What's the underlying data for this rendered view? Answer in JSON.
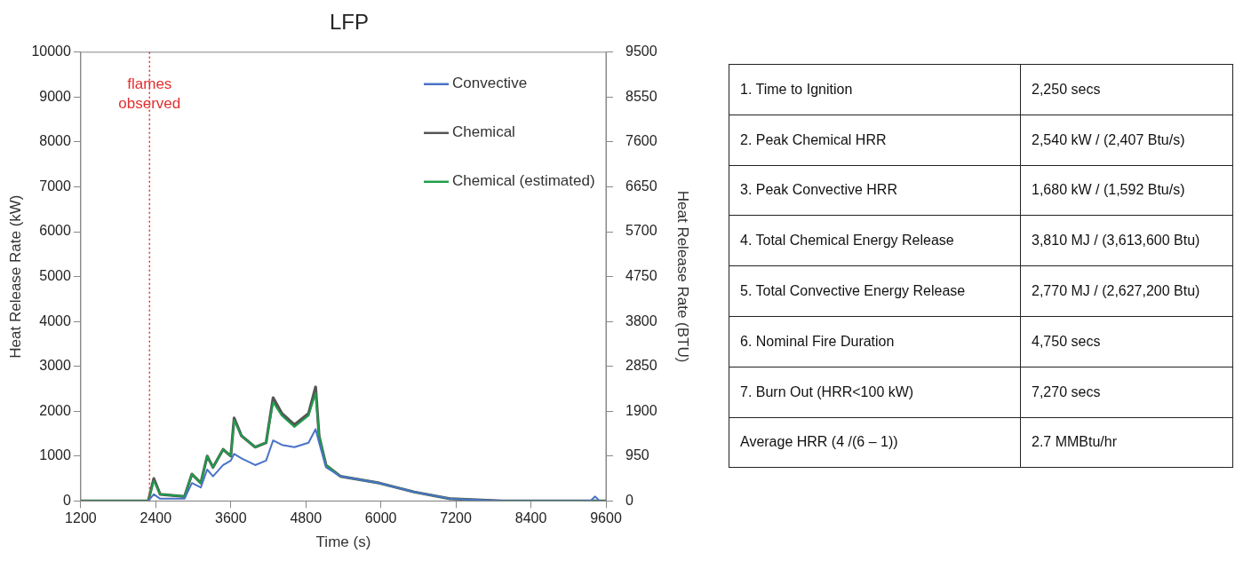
{
  "chart_data": [
    {
      "type": "line",
      "title": "LFP",
      "xlabel": "Time (s)",
      "ylabel": "Heat Release Rate (kW)",
      "y2label": "Heat Release Rate (BTU)",
      "xlim": [
        1200,
        9600
      ],
      "xticks": [
        1200,
        2400,
        3600,
        4800,
        6000,
        7200,
        8400,
        9600
      ],
      "ylim": [
        0,
        10000
      ],
      "yticks": [
        0,
        1000,
        2000,
        3000,
        4000,
        5000,
        6000,
        7000,
        8000,
        9000,
        10000
      ],
      "y2lim": [
        0,
        9500
      ],
      "y2ticks": [
        0,
        950,
        1900,
        2850,
        3800,
        4750,
        5700,
        6650,
        7600,
        8550,
        9500
      ],
      "grid": false,
      "legend": "top right",
      "marker": "none",
      "line_style": "solid",
      "ref_lines": [
        {
          "axis": "x",
          "value": 2300,
          "label": "flames observed",
          "color": "#e03030",
          "line_style": "dotted"
        }
      ],
      "series": [
        {
          "name": "Convective",
          "color": "#4a72c8",
          "x": [
            2280,
            2368,
            2470,
            2860,
            2978,
            3120,
            3222,
            3315,
            3477,
            3600,
            3653,
            3771,
            3990,
            4164,
            4277,
            4417,
            4617,
            4843,
            4956,
            5012,
            5122,
            5352,
            5975,
            6533,
            7106,
            7950,
            9350,
            9427,
            9500
          ],
          "values": [
            0,
            150,
            50,
            50,
            400,
            300,
            700,
            550,
            800,
            900,
            1050,
            950,
            800,
            900,
            1350,
            1250,
            1200,
            1300,
            1600,
            1300,
            750,
            550,
            400,
            200,
            50,
            0,
            0,
            100,
            0
          ]
        },
        {
          "name": "Chemical",
          "color": "#555555",
          "x": [
            1200,
            2280,
            2368,
            2470,
            2860,
            2978,
            3120,
            3222,
            3315,
            3477,
            3600,
            3653,
            3771,
            3990,
            4164,
            4277,
            4417,
            4617,
            4843,
            4956,
            5012,
            5122,
            5352,
            5975,
            6533,
            7106,
            7950,
            9600
          ],
          "values": [
            0,
            0,
            500,
            150,
            100,
            600,
            400,
            1000,
            750,
            1150,
            1000,
            1850,
            1450,
            1200,
            1300,
            2300,
            1950,
            1700,
            1950,
            2540,
            1450,
            800,
            550,
            400,
            200,
            50,
            0,
            0
          ]
        },
        {
          "name": "Chemical (estimated)",
          "color": "#1e9e4a",
          "x": [
            1200,
            2280,
            2368,
            2470,
            2860,
            2978,
            3120,
            3222,
            3315,
            3477,
            3600,
            3653,
            3771,
            3990,
            4164,
            4277,
            4417,
            4617,
            4843,
            4956,
            5012,
            5122,
            5352,
            5975,
            6533,
            7106,
            7950,
            9600
          ],
          "values": [
            0,
            0,
            450,
            150,
            100,
            600,
            400,
            1000,
            750,
            1150,
            1000,
            1800,
            1450,
            1200,
            1300,
            2200,
            1900,
            1650,
            1900,
            2400,
            1450,
            800,
            550,
            400,
            200,
            50,
            0,
            0
          ]
        }
      ]
    },
    {
      "type": "other",
      "annotations": [
        "1. Time to Ignition",
        "2,250 secs",
        "2. Peak Chemical HRR",
        "2,540 kW / (2,407 Btu/s)",
        "3. Peak Convective HRR",
        "1,680 kW / (1,592 Btu/s)",
        "4. Total Chemical Energy Release",
        "3,810 MJ / (3,613,600 Btu)",
        "5. Total Convective Energy Release",
        "2,770 MJ / (2,627,200 Btu)",
        "6. Nominal Fire Duration",
        "4,750 secs",
        "7. Burn Out (HRR<100 kW)",
        "7,270 secs",
        "Average HRR (4 /(6 – 1))",
        "2.7 MMBtu/hr"
      ]
    }
  ]
}
